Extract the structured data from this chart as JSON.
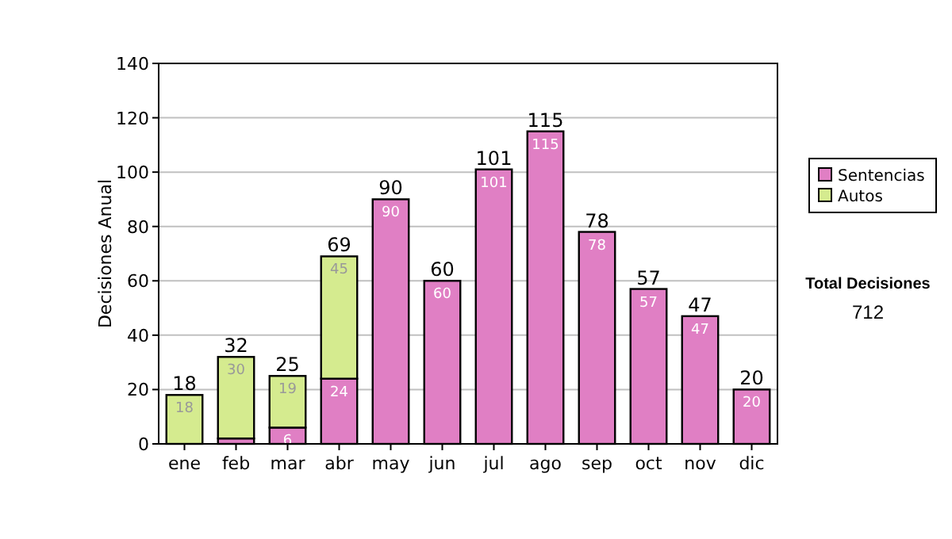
{
  "chart_data": {
    "type": "bar",
    "stacked": true,
    "ylabel": "Decisiones Anual",
    "categories": [
      "ene",
      "feb",
      "mar",
      "abr",
      "may",
      "jun",
      "jul",
      "ago",
      "sep",
      "oct",
      "nov",
      "dic"
    ],
    "series": [
      {
        "name": "Sentencias",
        "color": "#e07fc4",
        "values": [
          0,
          2,
          6,
          24,
          90,
          60,
          101,
          115,
          78,
          57,
          47,
          20
        ],
        "value_labels": [
          null,
          null,
          "6",
          "24",
          "90",
          "60",
          "101",
          "115",
          "78",
          "57",
          "47",
          "20"
        ]
      },
      {
        "name": "Autos",
        "color": "#d5eb8f",
        "values": [
          18,
          30,
          19,
          45,
          null,
          null,
          null,
          null,
          null,
          null,
          null,
          null
        ],
        "value_labels": [
          "18",
          "30",
          "19",
          "45",
          null,
          null,
          null,
          null,
          null,
          null,
          null,
          null
        ]
      }
    ],
    "totals": [
      "18",
      "32",
      "25",
      "69",
      "90",
      "60",
      "101",
      "115",
      "78",
      "57",
      "47",
      "20"
    ],
    "ylim": [
      0,
      140
    ],
    "yticks": [
      0,
      20,
      40,
      60,
      80,
      100,
      120,
      140
    ],
    "grid": "y",
    "legend": "right",
    "annotations": [
      "Total Decisiones",
      "712"
    ]
  }
}
